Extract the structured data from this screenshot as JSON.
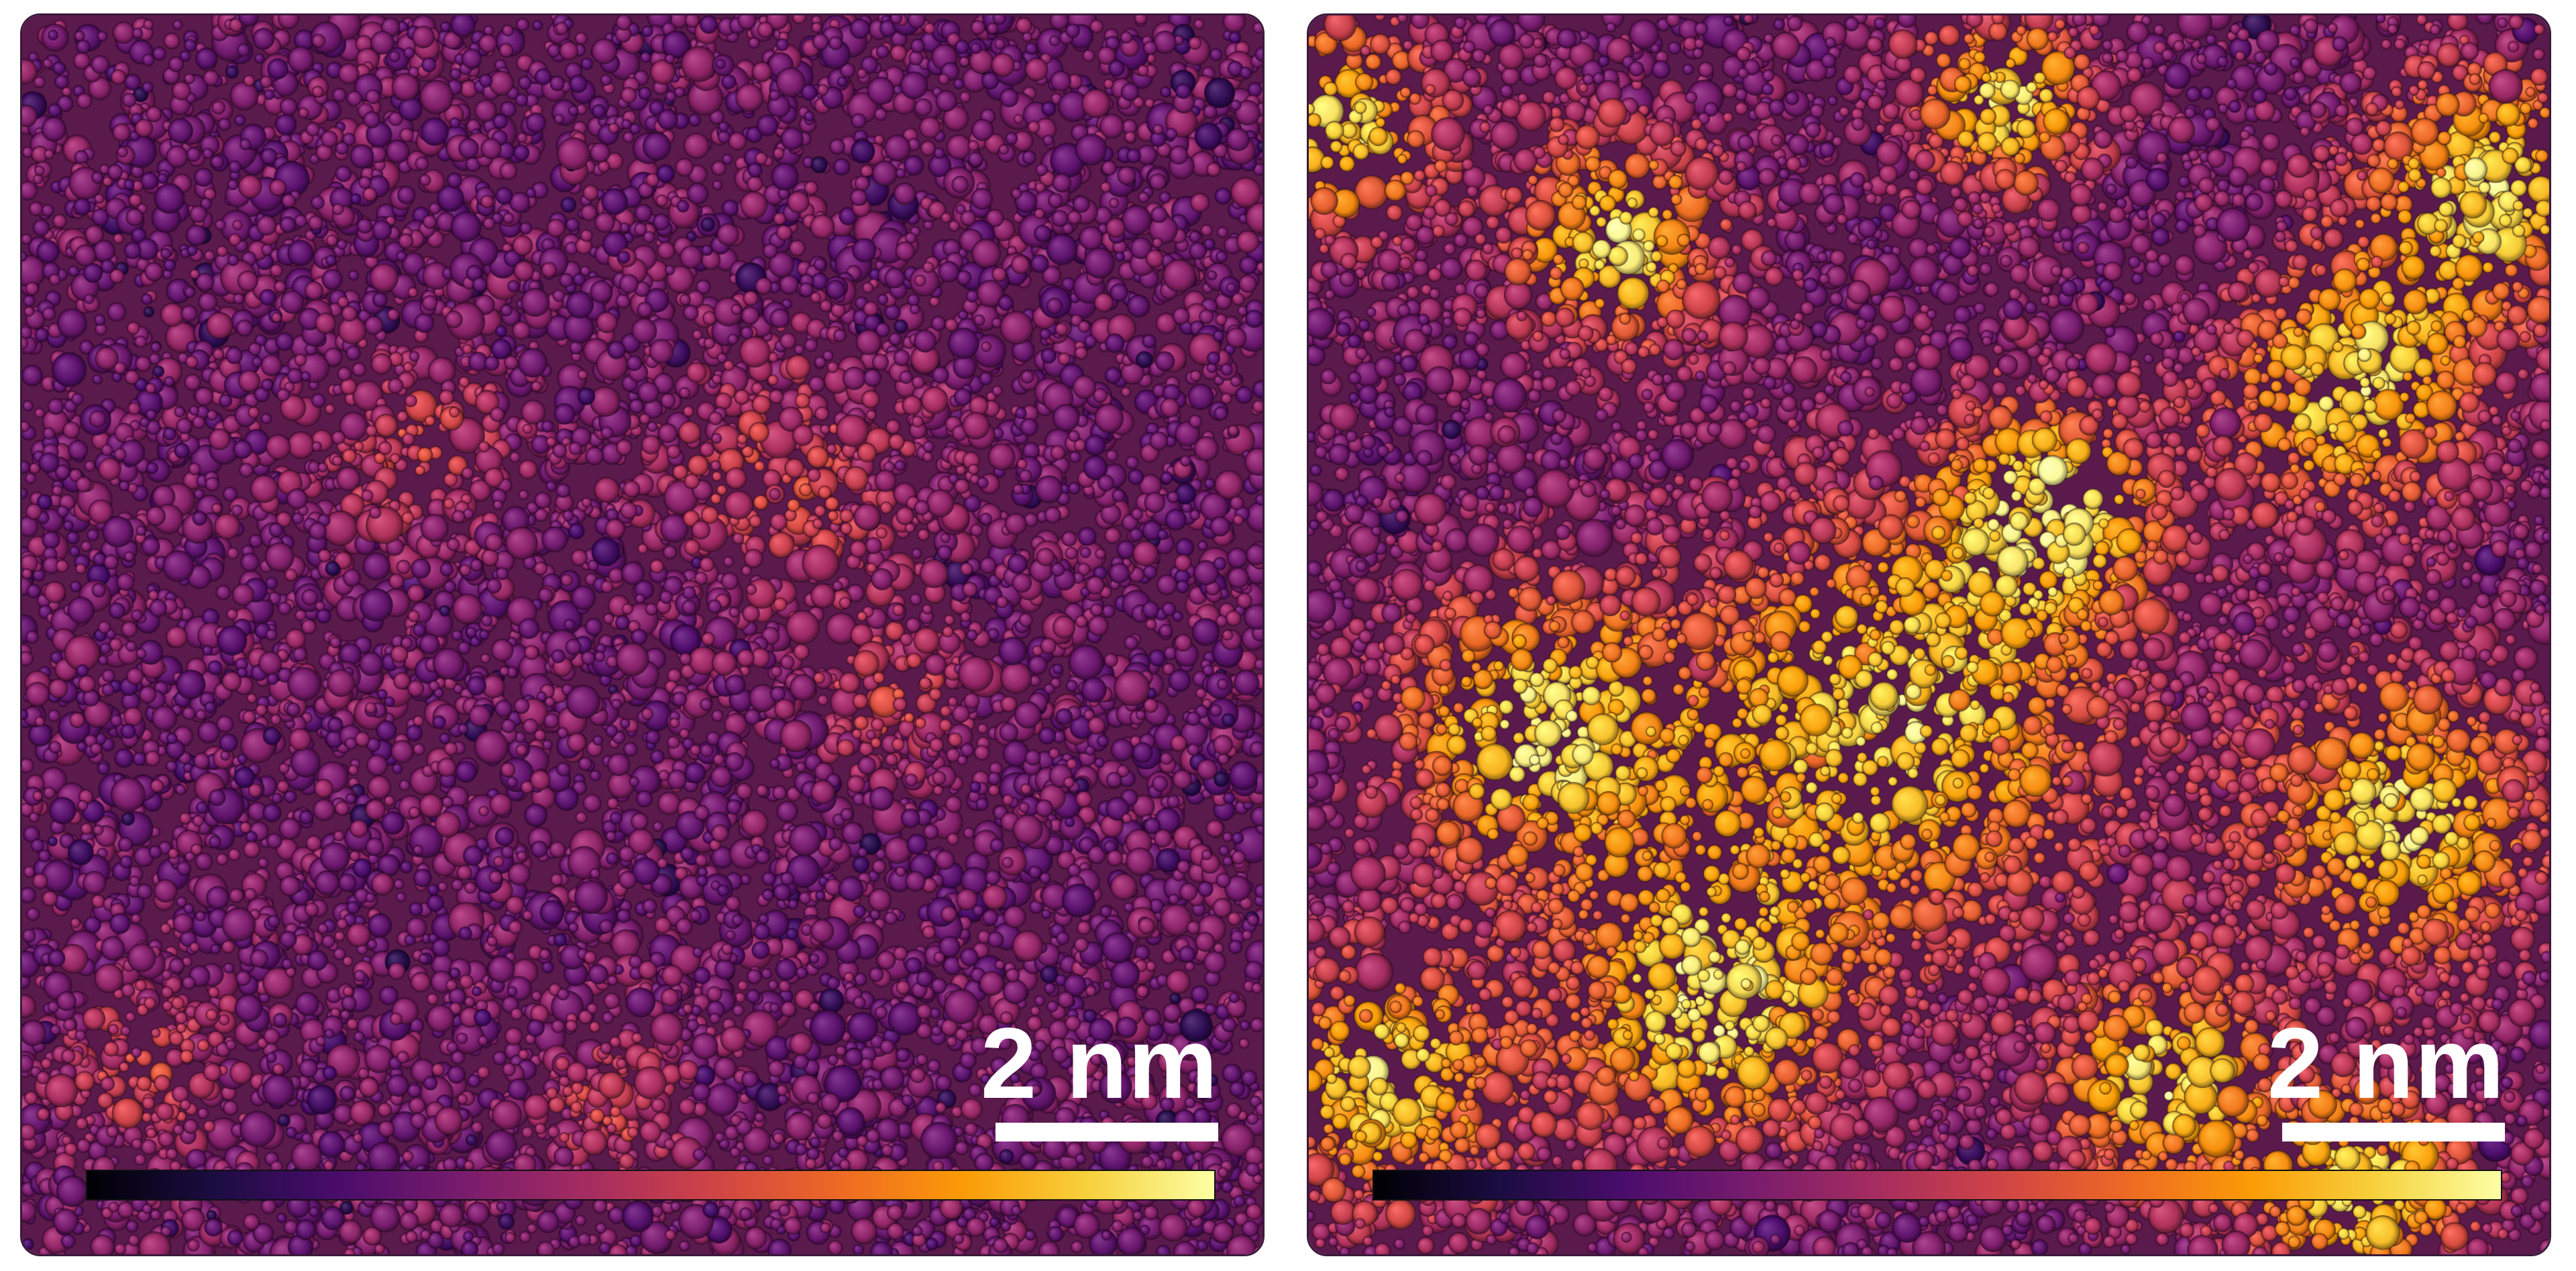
{
  "panels": [
    {
      "name": "left",
      "scale_bar": {
        "label": "2 nm"
      },
      "hot_spot_strength": 0.35
    },
    {
      "name": "right",
      "scale_bar": {
        "label": "2 nm"
      },
      "hot_spot_strength": 1.0
    }
  ],
  "colormap": {
    "name": "inferno",
    "stops": [
      "#000004",
      "#1b0c41",
      "#4a0c6b",
      "#781c6d",
      "#a52c60",
      "#cf4446",
      "#ed6925",
      "#fb9b06",
      "#f7d13d",
      "#fcffa4"
    ]
  }
}
